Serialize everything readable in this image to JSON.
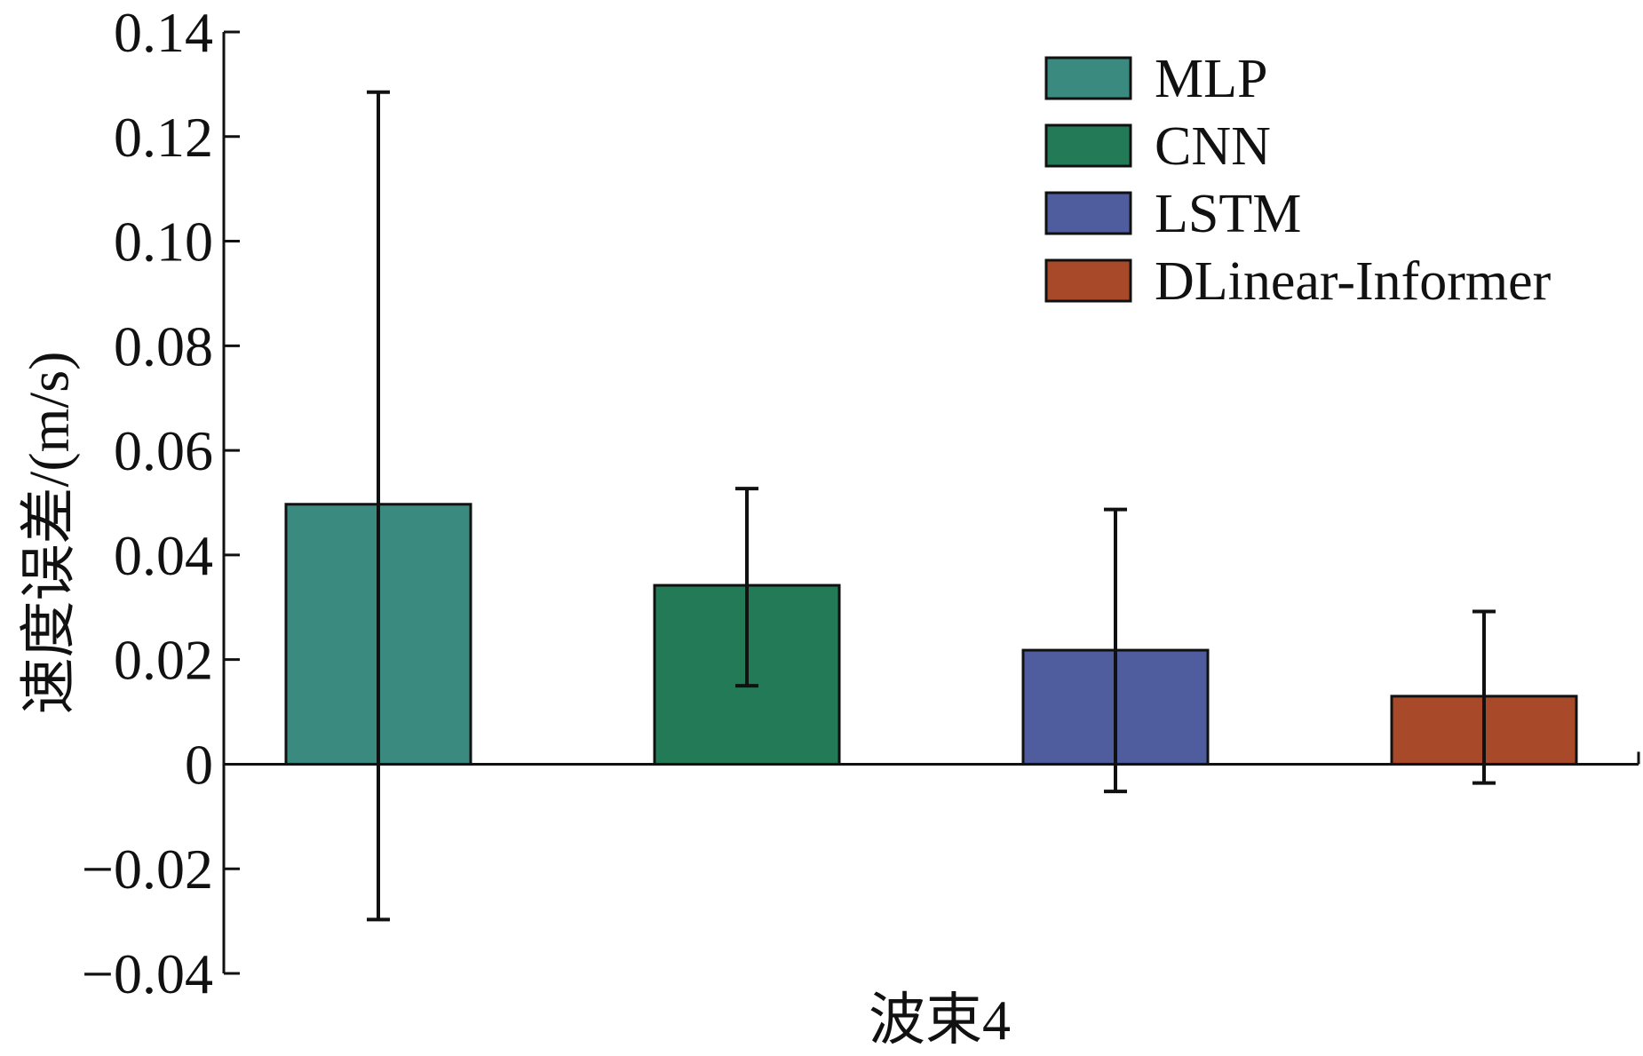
{
  "chart_data": {
    "type": "bar",
    "title": "",
    "xlabel": "波束4",
    "ylabel": "速度误差/(m/s)",
    "ylim": [
      -0.04,
      0.14
    ],
    "yticks": [
      {
        "value": 0.14,
        "label": "0.14"
      },
      {
        "value": 0.12,
        "label": "0.12"
      },
      {
        "value": 0.1,
        "label": "0.10"
      },
      {
        "value": 0.08,
        "label": "0.08"
      },
      {
        "value": 0.06,
        "label": "0.06"
      },
      {
        "value": 0.04,
        "label": "0.04"
      },
      {
        "value": 0.02,
        "label": "0.02"
      },
      {
        "value": 0,
        "label": "0"
      },
      {
        "value": -0.02,
        "label": "−0.02"
      },
      {
        "value": -0.04,
        "label": "−0.04"
      }
    ],
    "grid": false,
    "legend_position": "top-right",
    "series": [
      {
        "name": "MLP",
        "value": 0.0497,
        "err_low": -0.0297,
        "err_high": 0.1285,
        "color": "#3a8a80"
      },
      {
        "name": "CNN",
        "value": 0.0342,
        "err_low": 0.015,
        "err_high": 0.0527,
        "color": "#237a56"
      },
      {
        "name": "LSTM",
        "value": 0.0218,
        "err_low": -0.0052,
        "err_high": 0.0487,
        "color": "#4f5d9e"
      },
      {
        "name": "DLinear-Informer",
        "value": 0.013,
        "err_low": -0.0036,
        "err_high": 0.0292,
        "color": "#a84a2a"
      }
    ]
  }
}
